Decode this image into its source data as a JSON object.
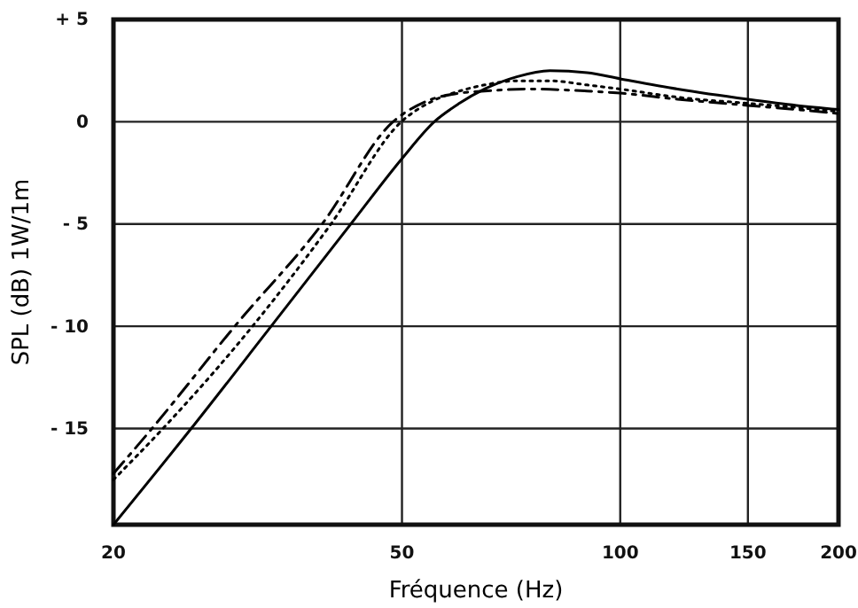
{
  "chart_data": {
    "type": "line",
    "xlabel": "Fréquence (Hz)",
    "ylabel": "SPL (dB) 1W/1m",
    "log": "x",
    "grid": true,
    "marker": "none",
    "xlim": [
      20,
      200
    ],
    "ylim": [
      -19.7,
      5
    ],
    "xticks": [
      20,
      50,
      100,
      150,
      200
    ],
    "yticks": [
      {
        "value": 5,
        "label": "+ 5"
      },
      0,
      {
        "value": -5,
        "label": "- 5"
      },
      {
        "value": -10,
        "label": "- 10"
      },
      {
        "value": -15,
        "label": "- 15"
      }
    ],
    "series": [
      {
        "color": "#000000",
        "line_style": "solid",
        "x": [
          20,
          25.6,
          33,
          42.5,
          50,
          55.4,
          60,
          65,
          72,
          80,
          90,
          100,
          120,
          150,
          175,
          200
        ],
        "values": [
          -19.7,
          -15,
          -10,
          -5,
          -1.8,
          0,
          0.9,
          1.6,
          2.2,
          2.5,
          2.4,
          2.1,
          1.6,
          1.1,
          0.8,
          0.6
        ]
      },
      {
        "color": "#000000",
        "line_style": "dotted",
        "x": [
          20,
          23.4,
          31.1,
          39.9,
          49.9,
          55,
          60,
          65,
          72,
          80,
          90,
          100,
          120,
          150,
          175,
          200
        ],
        "values": [
          -17.5,
          -15,
          -10,
          -5,
          0,
          1,
          1.5,
          1.8,
          2,
          2,
          1.8,
          1.6,
          1.2,
          0.9,
          0.7,
          0.5
        ]
      },
      {
        "color": "#000000",
        "line_style": "dashed",
        "x": [
          20,
          22.6,
          29.4,
          38.8,
          48.6,
          54,
          60,
          65,
          75,
          90,
          100,
          120,
          150,
          175,
          200
        ],
        "values": [
          -17.2,
          -15,
          -10,
          -5,
          0,
          1,
          1.4,
          1.5,
          1.6,
          1.5,
          1.4,
          1.1,
          0.8,
          0.6,
          0.4
        ]
      }
    ]
  }
}
